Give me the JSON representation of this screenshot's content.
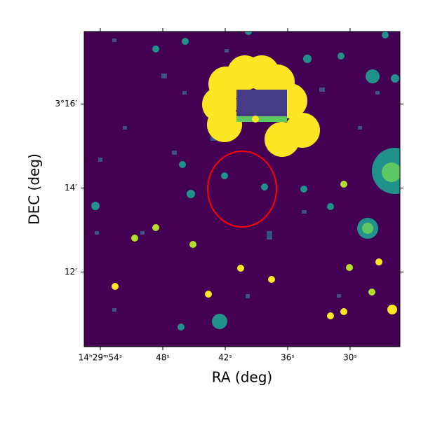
{
  "chart_data": {
    "type": "image",
    "xlabel": "RA (deg)",
    "ylabel": "DEC (deg)",
    "xlim": [
      55.55,
      25.21
    ],
    "xticks": [
      {
        "value": 54,
        "label": "14ʰ29ᵐ54ˢ"
      },
      {
        "value": 48,
        "label": "48ˢ"
      },
      {
        "value": 42,
        "label": "42ˢ"
      },
      {
        "value": 36,
        "label": "36ˢ"
      },
      {
        "value": 30,
        "label": "30ˢ"
      }
    ],
    "ylim": [
      10.22,
      17.73
    ],
    "yticks": [
      {
        "value": 16,
        "label": "3°16′"
      },
      {
        "value": 14,
        "label": "14′"
      },
      {
        "value": 12,
        "label": "12′"
      }
    ]
  }
}
